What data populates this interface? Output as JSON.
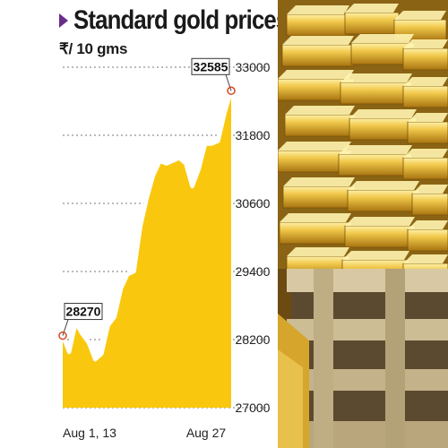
{
  "title": "Standard gold prices",
  "subtitle": "₹/ 10 gms",
  "colors": {
    "area": "#f9c80e",
    "line": "#ffffff",
    "grid": "#777777",
    "marker": "#d9461f",
    "title_marker": "#6a2d8a"
  },
  "chart_data": {
    "type": "area",
    "unit": "₹/ 10 gms",
    "x_tick_labels": [
      "Aug 1, 13",
      "Aug 27"
    ],
    "y_ticks": [
      27000,
      28200,
      29400,
      30600,
      31800,
      33000
    ],
    "ylim": [
      27000,
      33000
    ],
    "grid": "horizontal dotted",
    "annotations": [
      {
        "label": "28270",
        "index": 0
      },
      {
        "label": "32585",
        "index": 26
      }
    ],
    "x": [
      1,
      2,
      3,
      4,
      5,
      6,
      7,
      8,
      9,
      10,
      11,
      12,
      13,
      14,
      15,
      16,
      17,
      18,
      19,
      20,
      21,
      22,
      23,
      24,
      25,
      26,
      27
    ],
    "values": [
      28270,
      27980,
      28500,
      28300,
      28150,
      27850,
      27950,
      28450,
      28600,
      29100,
      29350,
      29400,
      30200,
      30700,
      31100,
      31350,
      31300,
      31350,
      31400,
      31300,
      30900,
      31200,
      31650,
      31650,
      31700,
      32200,
      32585
    ]
  },
  "photo": {
    "subject": "stacked gold bars"
  }
}
